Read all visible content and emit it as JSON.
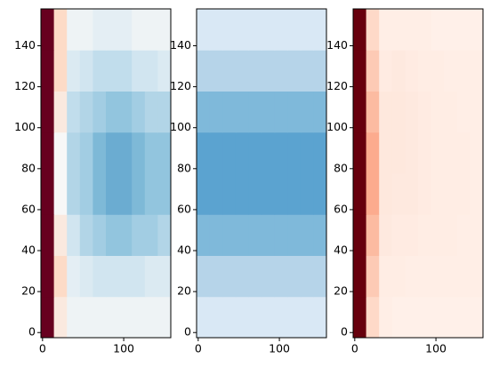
{
  "chart_data": [
    {
      "type": "heatmap",
      "colormap": [
        "#053061",
        "#2166ac",
        "#4393c3",
        "#92c5de",
        "#d1e5f0",
        "#f7f7f7",
        "#fddbc7",
        "#f4a582",
        "#d6604d",
        "#b2182b",
        "#67001f"
      ],
      "clim": [
        -1,
        1
      ],
      "xlim": [
        -2,
        158
      ],
      "ylim": [
        -2.5,
        158
      ],
      "xticks": [
        0,
        100
      ],
      "yticks": [
        0,
        20,
        40,
        60,
        80,
        100,
        120,
        140
      ],
      "z": [
        [
          1,
          0.1,
          -0.05,
          -0.05,
          -0.05,
          -0.05,
          -0.05,
          -0.05,
          -0.05,
          -0.05
        ],
        [
          1,
          0.2,
          -0.1,
          -0.15,
          -0.2,
          -0.2,
          -0.2,
          -0.2,
          -0.15,
          -0.15
        ],
        [
          1,
          0.1,
          -0.2,
          -0.3,
          -0.35,
          -0.4,
          -0.4,
          -0.35,
          -0.35,
          -0.3
        ],
        [
          1,
          0,
          -0.3,
          -0.35,
          -0.45,
          -0.5,
          -0.5,
          -0.45,
          -0.4,
          -0.4
        ],
        [
          1,
          0,
          -0.3,
          -0.35,
          -0.45,
          -0.5,
          -0.5,
          -0.45,
          -0.4,
          -0.4
        ],
        [
          1,
          0.1,
          -0.25,
          -0.3,
          -0.35,
          -0.4,
          -0.4,
          -0.35,
          -0.3,
          -0.3
        ],
        [
          1,
          0.2,
          -0.15,
          -0.2,
          -0.25,
          -0.25,
          -0.25,
          -0.2,
          -0.2,
          -0.15
        ],
        [
          1,
          0.2,
          -0.05,
          -0.05,
          -0.1,
          -0.1,
          -0.1,
          -0.05,
          -0.05,
          -0.05
        ]
      ]
    },
    {
      "type": "heatmap",
      "colormap": [
        "#f7fbff",
        "#deebf7",
        "#c6dbef",
        "#9ecae1",
        "#6baed6",
        "#4292c6",
        "#2171b5",
        "#08519c",
        "#08306b"
      ],
      "clim": [
        0,
        1
      ],
      "xlim": [
        -2,
        158
      ],
      "ylim": [
        -2.5,
        158
      ],
      "xticks": [
        0,
        100
      ],
      "yticks": [
        0,
        20,
        40,
        60,
        80,
        100,
        120,
        140
      ],
      "z": [
        [
          0.15,
          0.15,
          0.15,
          0.15,
          0.15,
          0.15,
          0.15,
          0.15,
          0.15,
          0.15
        ],
        [
          0.3,
          0.3,
          0.3,
          0.3,
          0.3,
          0.3,
          0.3,
          0.3,
          0.3,
          0.3
        ],
        [
          0.45,
          0.45,
          0.45,
          0.45,
          0.45,
          0.45,
          0.45,
          0.45,
          0.45,
          0.45
        ],
        [
          0.55,
          0.55,
          0.55,
          0.55,
          0.55,
          0.55,
          0.55,
          0.55,
          0.55,
          0.55
        ],
        [
          0.55,
          0.55,
          0.55,
          0.55,
          0.55,
          0.55,
          0.55,
          0.55,
          0.55,
          0.55
        ],
        [
          0.45,
          0.45,
          0.45,
          0.45,
          0.45,
          0.45,
          0.45,
          0.45,
          0.45,
          0.45
        ],
        [
          0.3,
          0.3,
          0.3,
          0.3,
          0.3,
          0.3,
          0.3,
          0.3,
          0.3,
          0.3
        ],
        [
          0.15,
          0.15,
          0.15,
          0.15,
          0.15,
          0.15,
          0.15,
          0.15,
          0.15,
          0.15
        ]
      ]
    },
    {
      "type": "heatmap",
      "colormap": [
        "#fff5f0",
        "#fee0d2",
        "#fcbba1",
        "#fc9272",
        "#fb6a4a",
        "#ef3b2c",
        "#cb181d",
        "#a50f15",
        "#67000d"
      ],
      "clim": [
        0,
        1
      ],
      "xlim": [
        -2,
        158
      ],
      "ylim": [
        -2.5,
        158
      ],
      "xticks": [
        0,
        100
      ],
      "yticks": [
        0,
        20,
        40,
        60,
        80,
        100,
        120,
        140
      ],
      "z": [
        [
          1,
          0.15,
          0.04,
          0.03,
          0.03,
          0.03,
          0.03,
          0.03,
          0.03,
          0.03
        ],
        [
          1,
          0.2,
          0.05,
          0.05,
          0.04,
          0.04,
          0.04,
          0.04,
          0.04,
          0.04
        ],
        [
          1,
          0.25,
          0.07,
          0.06,
          0.06,
          0.05,
          0.05,
          0.05,
          0.04,
          0.04
        ],
        [
          1,
          0.3,
          0.08,
          0.07,
          0.07,
          0.06,
          0.05,
          0.05,
          0.05,
          0.04
        ],
        [
          1,
          0.3,
          0.08,
          0.08,
          0.07,
          0.06,
          0.05,
          0.05,
          0.05,
          0.04
        ],
        [
          1,
          0.25,
          0.08,
          0.08,
          0.07,
          0.06,
          0.05,
          0.05,
          0.04,
          0.04
        ],
        [
          1,
          0.2,
          0.06,
          0.07,
          0.06,
          0.05,
          0.05,
          0.04,
          0.04,
          0.04
        ],
        [
          1,
          0.15,
          0.04,
          0.04,
          0.04,
          0.04,
          0.03,
          0.03,
          0.03,
          0.03
        ]
      ]
    }
  ]
}
